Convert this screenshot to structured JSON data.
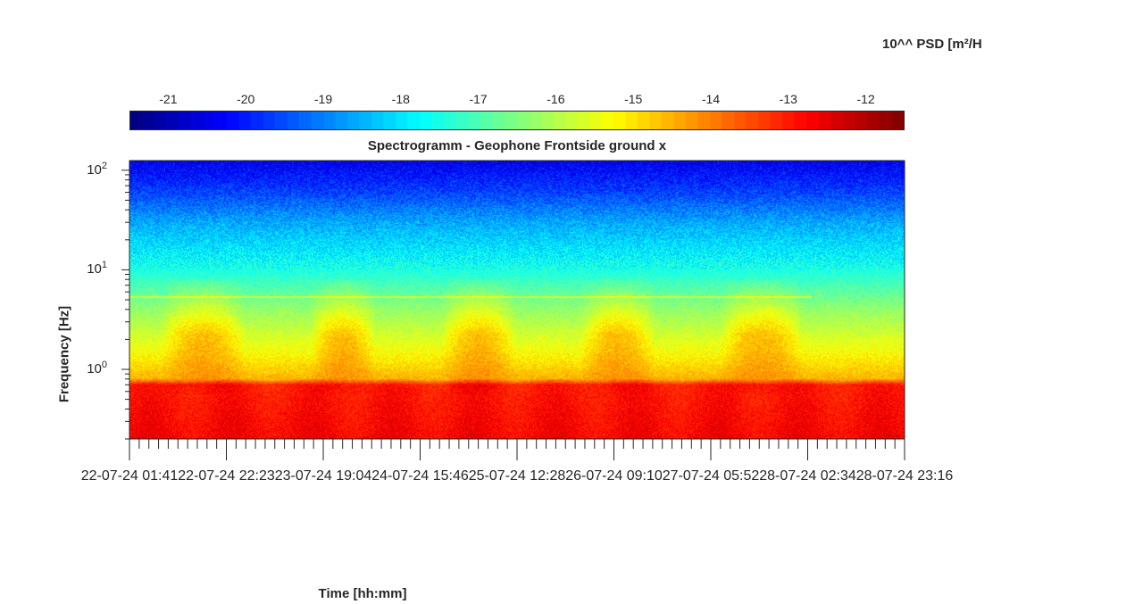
{
  "chart_data": {
    "type": "heatmap",
    "title": "Spectrogramm - Geophone Frontside ground x",
    "xlabel": "Time [hh:mm]",
    "ylabel": "Frequency [Hz]",
    "y_scale": "log",
    "ylim": [
      0.2,
      125
    ],
    "y_ticks": [
      {
        "base": "10",
        "exp": "0",
        "value": 1
      },
      {
        "base": "10",
        "exp": "1",
        "value": 10
      },
      {
        "base": "10",
        "exp": "2",
        "value": 100
      }
    ],
    "x_ticks": [
      "22-07-24  01:41",
      "22-07-24  22:23",
      "23-07-24  19:04",
      "24-07-24  15:46",
      "25-07-24  12:28",
      "26-07-24  09:10",
      "27-07-24  05:52",
      "28-07-24  02:34",
      "28-07-24  23:16"
    ],
    "colorbar": {
      "label": "10^^ PSD [m²/H",
      "range": [
        -21.5,
        -11.5
      ],
      "ticks": [
        "-21",
        "-20",
        "-19",
        "-18",
        "-17",
        "-16",
        "-15",
        "-14",
        "-13",
        "-12"
      ],
      "colormap": "jet"
    },
    "psd_profile": [
      {
        "freq_hz": 0.2,
        "log_psd": -12.7
      },
      {
        "freq_hz": 0.7,
        "log_psd": -13.0
      },
      {
        "freq_hz": 0.8,
        "log_psd": -14.5
      },
      {
        "freq_hz": 1.5,
        "log_psd": -15.3
      },
      {
        "freq_hz": 4,
        "log_psd": -16.3
      },
      {
        "freq_hz": 10,
        "log_psd": -17.5
      },
      {
        "freq_hz": 30,
        "log_psd": -18.6
      },
      {
        "freq_hz": 60,
        "log_psd": -19.6
      },
      {
        "freq_hz": 120,
        "log_psd": -20.4
      }
    ],
    "daytime_activity_windows_fraction": [
      [
        0.05,
        0.14
      ],
      [
        0.24,
        0.31
      ],
      [
        0.41,
        0.49
      ],
      [
        0.59,
        0.67
      ],
      [
        0.77,
        0.86
      ]
    ]
  }
}
